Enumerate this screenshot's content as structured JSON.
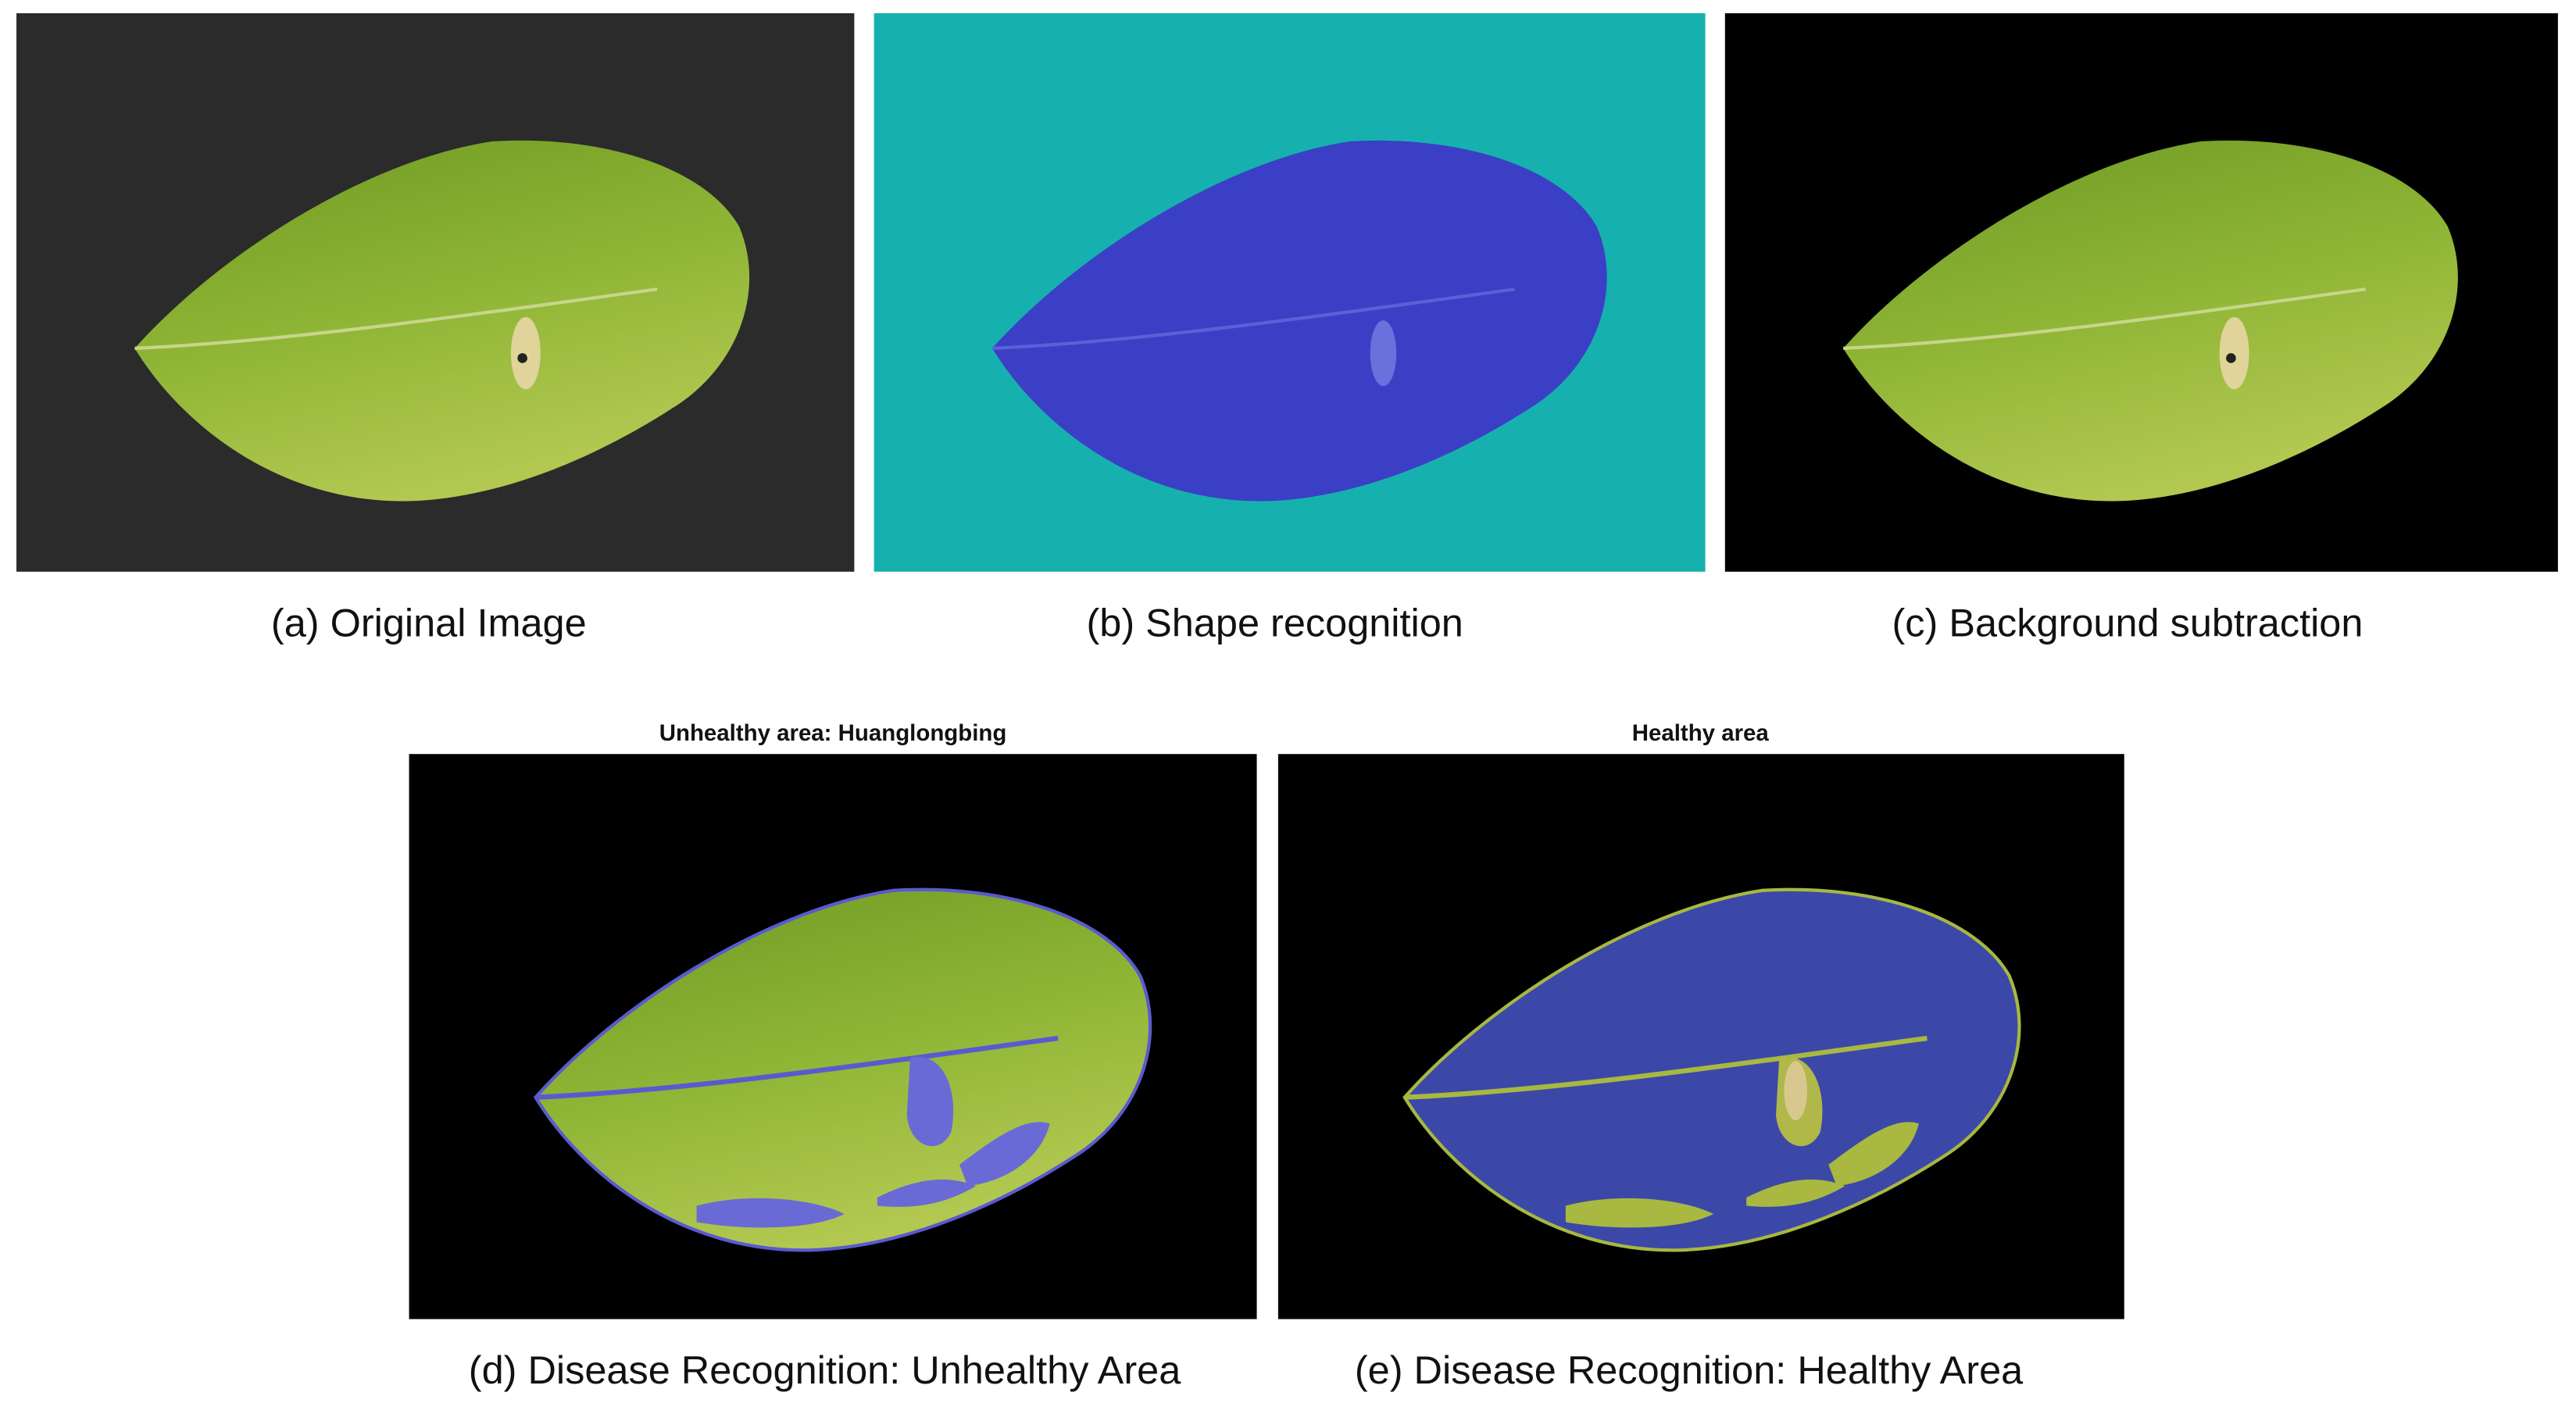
{
  "figure": {
    "panels": [
      {
        "caption": "(a) Original Image"
      },
      {
        "caption": "(b) Shape recognition"
      },
      {
        "caption": "(c) Background subtraction"
      },
      {
        "title": "Unhealthy area: Huanglongbing",
        "caption": "(d) Disease Recognition: Unhealthy Area"
      },
      {
        "title": "Healthy area",
        "caption": "(e) Disease Recognition: Healthy Area"
      }
    ]
  }
}
